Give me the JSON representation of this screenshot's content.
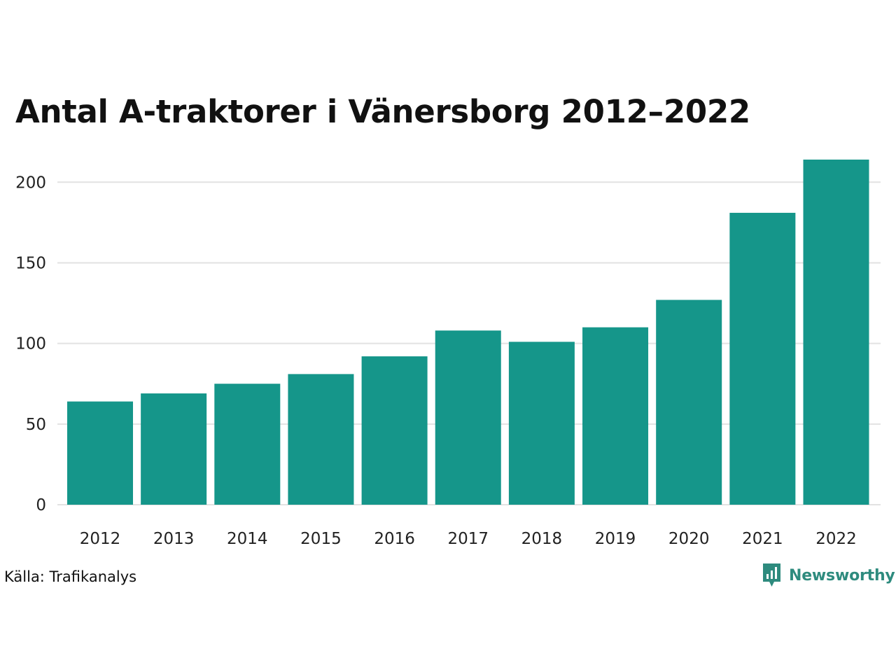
{
  "chart_data": {
    "type": "bar",
    "title": "Antal A-traktorer i Vänersborg 2012–2022",
    "xlabel": "",
    "ylabel": "",
    "categories": [
      "2012",
      "2013",
      "2014",
      "2015",
      "2016",
      "2017",
      "2018",
      "2019",
      "2020",
      "2021",
      "2022"
    ],
    "values": [
      64,
      69,
      75,
      81,
      92,
      108,
      101,
      110,
      127,
      181,
      214
    ],
    "ylim": [
      0,
      214
    ],
    "yticks": [
      0,
      50,
      100,
      150,
      200
    ],
    "grid": true,
    "legend": "none",
    "bar_color": "#15968a"
  },
  "source": "Källa: Trafikanalys",
  "brand": {
    "name": "Newsworthy",
    "color": "#2e8b7e",
    "icon": "newsworthy-logo-icon"
  }
}
